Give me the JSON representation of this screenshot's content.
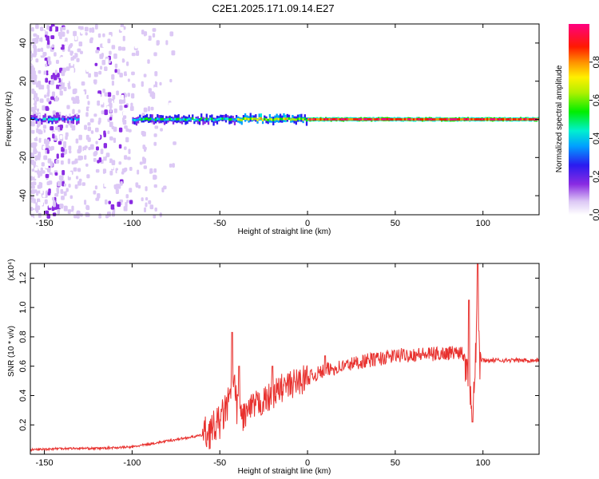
{
  "title": "C2E1.2025.171.09.14.E27",
  "colors": {
    "snr_line": "#e8322f",
    "frame": "#000000"
  },
  "chart_data": [
    {
      "type": "heatmap",
      "xlabel": "Height of straight line (km)",
      "ylabel": "Frequency (Hz)",
      "xlim": [
        -158,
        132
      ],
      "ylim": [
        -50,
        50
      ],
      "xticks": [
        -150,
        -100,
        -50,
        0,
        50,
        100
      ],
      "yticks": [
        -40,
        -20,
        0,
        20,
        40
      ],
      "colorbar": {
        "label": "Normalized spectral amplitude",
        "range": [
          0.0,
          1.0
        ],
        "ticks": [
          0.0,
          0.2,
          0.4,
          0.6,
          0.8
        ],
        "colormap": "rainbow (white → violet → blue → cyan → green → yellow → red → magenta)"
      },
      "carrier": {
        "frequency_hz": 0,
        "description": "Strong narrow signal near 0 Hz; noisy and broadened from -158 to about -90 km, clean and saturated (amplitude ~0.8–1.0) from about 0 km to 132 km, brief disturbance near 93 km",
        "segments": [
          {
            "x_start": -158,
            "x_end": -130,
            "amplitude": 0.35
          },
          {
            "x_start": -100,
            "x_end": -40,
            "amplitude": 0.5
          },
          {
            "x_start": -40,
            "x_end": 0,
            "amplitude": 0.7
          },
          {
            "x_start": 0,
            "x_end": 132,
            "amplitude": 0.95
          }
        ]
      },
      "noise_region": {
        "x_start": -158,
        "x_end": -60,
        "max_amplitude": 0.25
      }
    },
    {
      "type": "line",
      "xlabel": "Height of straight line (km)",
      "ylabel": "SNR (10 * v/v)",
      "scale_label": "(x10⁴)",
      "xlim": [
        -158,
        132
      ],
      "ylim": [
        0.0,
        1.3
      ],
      "xticks": [
        -150,
        -100,
        -50,
        0,
        50,
        100
      ],
      "yticks": [
        0.2,
        0.4,
        0.6,
        0.8,
        1.0,
        1.2
      ],
      "series": [
        {
          "x": [
            -158,
            -140,
            -120,
            -100,
            -90,
            -80,
            -70,
            -60,
            -55,
            -50,
            -45,
            -42,
            -40,
            -38,
            -35,
            -30,
            -25,
            -20,
            -15,
            -10,
            -5,
            0,
            10,
            20,
            30,
            40,
            50,
            60,
            70,
            80,
            88,
            92,
            94,
            96,
            97,
            98,
            100,
            110,
            120,
            132
          ],
          "y": [
            0.03,
            0.04,
            0.04,
            0.05,
            0.07,
            0.09,
            0.11,
            0.13,
            0.16,
            0.22,
            0.35,
            0.48,
            0.3,
            0.25,
            0.28,
            0.33,
            0.36,
            0.4,
            0.45,
            0.47,
            0.5,
            0.52,
            0.57,
            0.6,
            0.63,
            0.65,
            0.67,
            0.68,
            0.68,
            0.69,
            0.7,
            0.6,
            0.3,
            0.75,
            1.2,
            0.64,
            0.64,
            0.64,
            0.64,
            0.64
          ],
          "spikes": [
            {
              "x": -43,
              "y": 0.83
            },
            {
              "x": -39,
              "y": 0.6
            },
            {
              "x": -20,
              "y": 0.6
            },
            {
              "x": 10,
              "y": 0.67
            },
            {
              "x": 94,
              "y": 0.22
            },
            {
              "x": 92,
              "y": 1.05
            },
            {
              "x": 97,
              "y": 1.3
            }
          ]
        }
      ]
    }
  ]
}
